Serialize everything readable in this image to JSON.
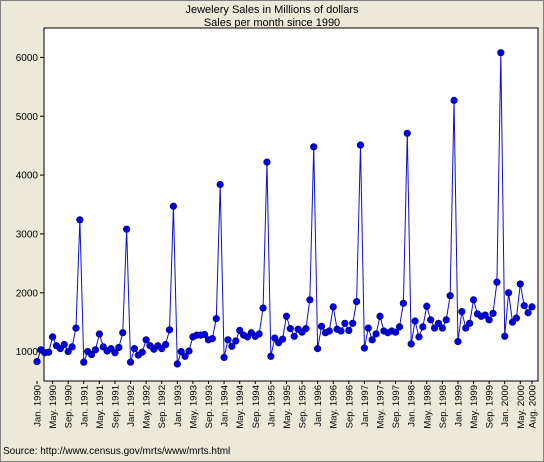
{
  "title": "Jewelery Sales in Millions of dollars",
  "subtitle": "Sales per month since 1990",
  "source": "Source: http://www.census.gov/mrts/www/mrts.html",
  "colors": {
    "line": "#1010c8",
    "marker": "#0000dd",
    "plot_bg": "#ffffff",
    "page_bg": "#ece9d8"
  },
  "chart_data": {
    "type": "line",
    "title": "Jewelery Sales in Millions of dollars",
    "subtitle": "Sales per month since 1990",
    "xlabel": "",
    "ylabel": "",
    "ylim": [
      500,
      6500
    ],
    "yticks": [
      1000,
      2000,
      3000,
      4000,
      5000,
      6000
    ],
    "grid": false,
    "legend": "none",
    "marker": "circle",
    "x_tick_labels": [
      "Jan. 1990",
      "May. 1990",
      "Sep. 1990",
      "Jan. 1991",
      "May. 1991",
      "Sep. 1991",
      "Jan. 1992",
      "May. 1992",
      "Sep. 1992",
      "Jan. 1993",
      "May. 1993",
      "Sep. 1993",
      "Jan. 1994",
      "May. 1994",
      "Sep. 1994",
      "Jan. 1995",
      "May. 1995",
      "Sep. 1995",
      "Jan. 1996",
      "May. 1996",
      "Sep. 1996",
      "Jan. 1997",
      "May. 1997",
      "Sep. 1997",
      "Jan. 1998",
      "May. 1998",
      "Sep. 1998",
      "Jan. 1999",
      "May. 1999",
      "Sep. 1999",
      "Jan. 2000",
      "May. 2000",
      "Aug. 2000"
    ],
    "x_start": "Jan. 1990",
    "series": [
      {
        "values": [
          830,
          1030,
          980,
          990,
          1250,
          1100,
          1050,
          1120,
          1000,
          1080,
          1400,
          3240,
          820,
          1000,
          950,
          1030,
          1300,
          1080,
          1010,
          1050,
          980,
          1070,
          1320,
          3080,
          820,
          1050,
          940,
          990,
          1200,
          1100,
          1040,
          1100,
          1050,
          1120,
          1370,
          3470,
          790,
          1000,
          920,
          1010,
          1250,
          1280,
          1280,
          1290,
          1200,
          1220,
          1560,
          3840,
          900,
          1200,
          1090,
          1180,
          1360,
          1280,
          1250,
          1320,
          1260,
          1300,
          1740,
          4220,
          920,
          1230,
          1150,
          1210,
          1600,
          1390,
          1260,
          1380,
          1330,
          1390,
          1880,
          4480,
          1050,
          1430,
          1320,
          1350,
          1760,
          1380,
          1350,
          1480,
          1360,
          1480,
          1850,
          4510,
          1060,
          1400,
          1200,
          1300,
          1600,
          1350,
          1320,
          1350,
          1330,
          1420,
          1820,
          4710,
          1130,
          1520,
          1250,
          1420,
          1770,
          1540,
          1400,
          1480,
          1400,
          1540,
          1950,
          5270,
          1170,
          1680,
          1400,
          1480,
          1880,
          1640,
          1600,
          1620,
          1540,
          1650,
          2180,
          6080,
          1260,
          2000,
          1500,
          1570,
          2150,
          1780,
          1660,
          1760
        ]
      }
    ]
  }
}
